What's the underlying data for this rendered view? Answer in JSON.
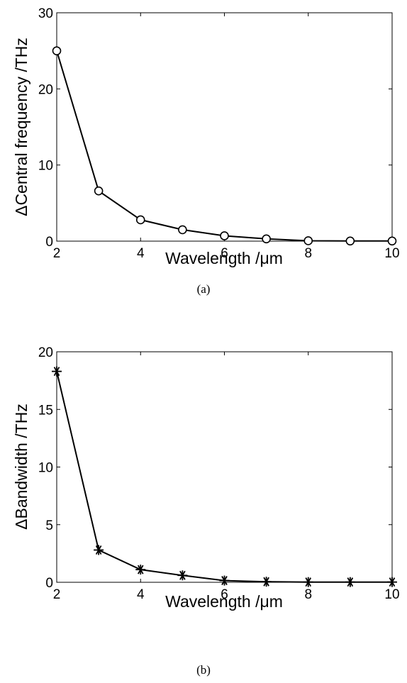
{
  "chart_data": [
    {
      "type": "line",
      "caption": "(a)",
      "xlabel": "Wavelength /μm",
      "ylabel": "ΔCentral frequency /THz",
      "xlim": [
        2,
        10
      ],
      "ylim": [
        0,
        30
      ],
      "xticks": [
        "2",
        "4",
        "6",
        "8",
        "10"
      ],
      "yticks": [
        "0",
        "10",
        "20",
        "30"
      ],
      "marker": "circle",
      "x": [
        2,
        3,
        4,
        5,
        6,
        7,
        8,
        9,
        10
      ],
      "y": [
        25,
        6.6,
        2.8,
        1.5,
        0.7,
        0.3,
        0.05,
        0.02,
        0.02
      ],
      "grid": false,
      "color": "#000000"
    },
    {
      "type": "line",
      "caption": "(b)",
      "xlabel": "Wavelength /μm",
      "ylabel": "ΔBandwidth /THz",
      "xlim": [
        2,
        10
      ],
      "ylim": [
        0,
        20
      ],
      "xticks": [
        "2",
        "4",
        "6",
        "8",
        "10"
      ],
      "yticks": [
        "0",
        "5",
        "10",
        "15",
        "20"
      ],
      "marker": "asterisk",
      "x": [
        2,
        3,
        4,
        5,
        6,
        7,
        8,
        9,
        10
      ],
      "y": [
        18.3,
        2.8,
        1.1,
        0.6,
        0.15,
        0.05,
        0.02,
        0.02,
        0.02
      ],
      "grid": false,
      "color": "#000000"
    }
  ]
}
